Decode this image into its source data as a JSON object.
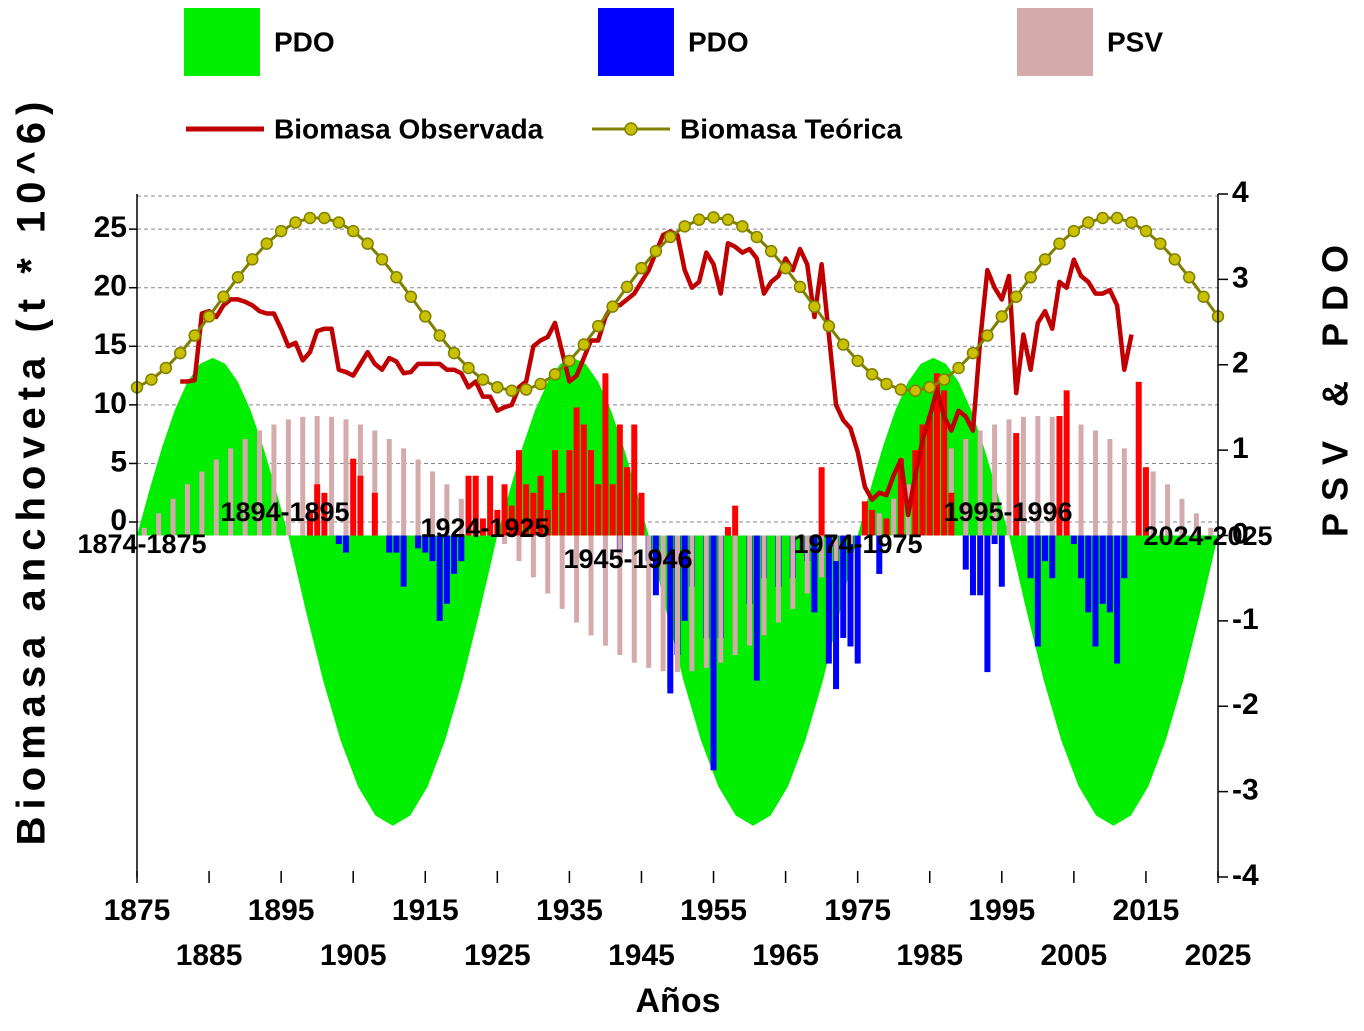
{
  "chart_data": {
    "type": "combo",
    "xlabel": "Años",
    "ylabel": "Biomasa anchoveta (t * 10^6)",
    "y2label": "PSV & PDO",
    "xlim": [
      1875,
      2025
    ],
    "xticks": [
      1875,
      1885,
      1895,
      1905,
      1915,
      1925,
      1935,
      1945,
      1955,
      1965,
      1975,
      1985,
      1995,
      2005,
      2015,
      2025
    ],
    "ylim": [
      -30.3,
      28
    ],
    "yticks": [
      0,
      5,
      10,
      15,
      20,
      25
    ],
    "y2lim": [
      -4,
      4
    ],
    "y2ticks": [
      -4,
      -3,
      -2,
      -1,
      0,
      1,
      2,
      3,
      4
    ],
    "grid": true,
    "annotations": [
      "1874-1875",
      "1894-1895",
      "1924-1925",
      "1945-1946",
      "1974-1975",
      "1995-1996",
      "2024-2025"
    ],
    "series": [
      {
        "name": "PDO",
        "color": "#00ee00",
        "style": "area",
        "axis": "y2",
        "x": [
          1875,
          1876.75,
          1878.5,
          1880.25,
          1882,
          1883.75,
          1885.5,
          1887.25,
          1889,
          1890.75,
          1892.5,
          1894.25,
          1896,
          1898.42,
          1900.83,
          1903.25,
          1905.67,
          1908.08,
          1910.5,
          1912.92,
          1915.33,
          1917.75,
          1920.17,
          1922.58,
          1925,
          1926.75,
          1928.5,
          1930.25,
          1932,
          1933.75,
          1935.5,
          1937.25,
          1939,
          1940.75,
          1942.5,
          1944.25,
          1946,
          1948.42,
          1950.83,
          1953.25,
          1955.67,
          1958.08,
          1960.5,
          1962.92,
          1965.33,
          1967.75,
          1970.17,
          1972.58,
          1975,
          1976.75,
          1978.5,
          1980.25,
          1982,
          1983.75,
          1985.5,
          1987.25,
          1989,
          1990.75,
          1992.5,
          1994.25,
          1996,
          1998.42,
          2000.83,
          2003.25,
          2005.67,
          2008.08,
          2010.5,
          2012.92,
          2015.33,
          2017.75,
          2020.17,
          2022.58,
          2025
        ],
        "values": [
          0,
          0.54,
          1.04,
          1.47,
          1.8,
          2.01,
          2.08,
          2.01,
          1.8,
          1.47,
          1.04,
          0.54,
          0,
          -0.88,
          -1.7,
          -2.4,
          -2.94,
          -3.28,
          -3.4,
          -3.28,
          -2.94,
          -2.4,
          -1.7,
          -0.88,
          0,
          0.54,
          1.04,
          1.47,
          1.8,
          2.01,
          2.08,
          2.01,
          1.8,
          1.47,
          1.04,
          0.54,
          0,
          -0.88,
          -1.7,
          -2.4,
          -2.94,
          -3.28,
          -3.4,
          -3.28,
          -2.94,
          -2.4,
          -1.7,
          -0.88,
          0,
          0.54,
          1.04,
          1.47,
          1.8,
          2.01,
          2.08,
          2.01,
          1.8,
          1.47,
          1.04,
          0.54,
          0,
          -0.88,
          -1.7,
          -2.4,
          -2.94,
          -3.28,
          -3.4,
          -3.28,
          -2.94,
          -2.4,
          -1.7,
          -0.88,
          0
        ]
      },
      {
        "name": "PDO",
        "color": "#0000ff",
        "style": "bar",
        "axis": "y2",
        "x": [
          1903,
          1904,
          1910,
          1911,
          1912,
          1914,
          1915,
          1916,
          1917,
          1918,
          1919,
          1920,
          1942,
          1946,
          1947,
          1949,
          1950,
          1951,
          1952,
          1954,
          1955,
          1956,
          1960,
          1961,
          1962,
          1964,
          1966,
          1968,
          1969,
          1971,
          1972,
          1973,
          1974,
          1975,
          1978,
          1990,
          1991,
          1992,
          1993,
          1994,
          1995,
          1999,
          2000,
          2001,
          2002,
          2005,
          2006,
          2007,
          2008,
          2009,
          2010,
          2011,
          2012
        ],
        "values": [
          -0.1,
          -0.2,
          -0.2,
          -0.2,
          -0.6,
          -0.15,
          -0.2,
          -0.3,
          -1.0,
          -0.8,
          -0.45,
          -0.3,
          -0.2,
          -0.3,
          -0.7,
          -1.85,
          -1.4,
          -1.0,
          -0.6,
          -1.2,
          -2.75,
          -1.2,
          -0.8,
          -1.7,
          -0.5,
          -0.6,
          -0.5,
          -0.3,
          -0.9,
          -1.5,
          -1.8,
          -1.2,
          -1.3,
          -1.5,
          -0.45,
          -0.4,
          -0.7,
          -0.7,
          -1.6,
          -0.1,
          -0.6,
          -0.5,
          -1.3,
          -0.3,
          -0.5,
          -0.1,
          -0.5,
          -0.9,
          -1.3,
          -0.8,
          -0.9,
          -1.5,
          -0.5
        ]
      },
      {
        "name": "PSV",
        "color": "#d4aaaa",
        "style": "bar",
        "axis": "y2",
        "x": [
          1876,
          1878,
          1880,
          1882,
          1884,
          1886,
          1888,
          1890,
          1892,
          1894,
          1896,
          1898,
          1900,
          1902,
          1904,
          1906,
          1908,
          1910,
          1912,
          1914,
          1916,
          1918,
          1920,
          1922,
          1924,
          1926,
          1928,
          1930,
          1932,
          1934,
          1936,
          1938,
          1940,
          1942,
          1944,
          1946,
          1948,
          1950,
          1952,
          1954,
          1956,
          1958,
          1960,
          1962,
          1964,
          1966,
          1968,
          1970,
          1972,
          1974,
          1976,
          1978,
          1980,
          1982,
          1984,
          1986,
          1988,
          1990,
          1992,
          1994,
          1996,
          1998,
          2000,
          2002,
          2004,
          2006,
          2008,
          2010,
          2012,
          2014,
          2016,
          2018,
          2020,
          2022,
          2024
        ],
        "values": [
          0.09,
          0.26,
          0.43,
          0.6,
          0.75,
          0.89,
          1.02,
          1.13,
          1.23,
          1.3,
          1.36,
          1.39,
          1.4,
          1.39,
          1.36,
          1.3,
          1.23,
          1.13,
          1.02,
          0.89,
          0.75,
          0.6,
          0.43,
          0.26,
          0.09,
          -0.1,
          -0.3,
          -0.49,
          -0.68,
          -0.86,
          -1.02,
          -1.17,
          -1.29,
          -1.4,
          -1.49,
          -1.55,
          -1.59,
          -1.6,
          -1.59,
          -1.55,
          -1.49,
          -1.4,
          -1.29,
          -1.17,
          -1.02,
          -0.86,
          -0.68,
          -0.49,
          -0.3,
          -0.1,
          0.09,
          0.26,
          0.43,
          0.6,
          0.75,
          0.89,
          1.02,
          1.13,
          1.23,
          1.3,
          1.36,
          1.39,
          1.4,
          1.39,
          1.36,
          1.3,
          1.23,
          1.13,
          1.02,
          0.89,
          0.75,
          0.6,
          0.43,
          0.26,
          0.09
        ]
      },
      {
        "color": "#ff0000",
        "style": "bar",
        "axis": "y2",
        "x": [
          1899,
          1900,
          1901,
          1905,
          1906,
          1908,
          1921,
          1922,
          1923,
          1924,
          1925,
          1926,
          1927,
          1928,
          1929,
          1930,
          1931,
          1932,
          1933,
          1934,
          1935,
          1936,
          1937,
          1938,
          1939,
          1940,
          1941,
          1942,
          1943,
          1944,
          1945,
          1957,
          1958,
          1970,
          1976,
          1977,
          1979,
          1981,
          1983,
          1984,
          1985,
          1986,
          1987,
          1988,
          1997,
          2003,
          2004,
          2014,
          2015
        ],
        "values": [
          0.3,
          0.6,
          0.5,
          0.9,
          0.7,
          0.5,
          0.7,
          0.7,
          0.2,
          0.7,
          0.3,
          0.6,
          0.35,
          1.0,
          0.6,
          0.5,
          0.7,
          0.3,
          1.0,
          0.5,
          1.0,
          1.5,
          1.3,
          1.0,
          0.6,
          1.9,
          0.6,
          1.3,
          0.8,
          1.3,
          0.5,
          0.1,
          0.35,
          0.8,
          0.4,
          0.3,
          0.2,
          0.9,
          1.0,
          1.3,
          1.4,
          1.9,
          1.7,
          0.5,
          1.2,
          1.4,
          1.7,
          1.8,
          0.8
        ]
      },
      {
        "name": "Biomasa Observada",
        "color": "#c00000",
        "style": "line",
        "x": [
          1881,
          1882,
          1883,
          1884,
          1885,
          1886,
          1887,
          1888,
          1889,
          1890,
          1891,
          1892,
          1893,
          1894,
          1895,
          1896,
          1897,
          1898,
          1899,
          1900,
          1901,
          1902,
          1903,
          1904,
          1905,
          1906,
          1907,
          1908,
          1909,
          1910,
          1911,
          1912,
          1913,
          1914,
          1915,
          1916,
          1917,
          1918,
          1919,
          1920,
          1921,
          1922,
          1923,
          1924,
          1925,
          1926,
          1927,
          1928,
          1929,
          1930,
          1931,
          1932,
          1933,
          1934,
          1935,
          1936,
          1937,
          1938,
          1939,
          1940,
          1941,
          1942,
          1943,
          1944,
          1945,
          1946,
          1947,
          1948,
          1949,
          1950,
          1951,
          1952,
          1953,
          1954,
          1955,
          1956,
          1957,
          1958,
          1959,
          1960,
          1961,
          1962,
          1963,
          1964,
          1965,
          1966,
          1967,
          1968,
          1969,
          1970,
          1971,
          1972,
          1973,
          1974,
          1975,
          1976,
          1977,
          1978,
          1979,
          1980,
          1981,
          1982,
          1983,
          1984,
          1985,
          1986,
          1987,
          1988,
          1989,
          1990,
          1991,
          1992,
          1993,
          1994,
          1995,
          1996,
          1997,
          1998,
          1999,
          2000,
          2001,
          2002,
          2003,
          2004,
          2005,
          2006,
          2007,
          2008,
          2009,
          2010,
          2011,
          2012,
          2013
        ],
        "values": [
          12.0,
          12.0,
          12.1,
          17.8,
          18.0,
          17.5,
          18.5,
          19.0,
          19.0,
          18.8,
          18.5,
          18.0,
          17.8,
          17.8,
          16.5,
          15.0,
          15.3,
          13.8,
          14.5,
          16.3,
          16.5,
          16.5,
          13.0,
          12.8,
          12.5,
          13.5,
          14.5,
          13.5,
          13.0,
          14.0,
          13.7,
          12.7,
          12.8,
          13.5,
          13.5,
          13.5,
          13.5,
          13.0,
          13.0,
          12.7,
          11.5,
          12.0,
          10.7,
          10.7,
          9.5,
          9.8,
          10.0,
          11.5,
          12.0,
          15.0,
          15.5,
          15.8,
          17.0,
          14.5,
          12.0,
          12.5,
          14.0,
          15.5,
          15.5,
          17.5,
          18.5,
          18.5,
          19.0,
          19.5,
          20.5,
          21.5,
          23.0,
          24.5,
          24.8,
          24.5,
          21.5,
          20.0,
          20.5,
          23.0,
          22.0,
          19.5,
          23.8,
          23.5,
          23.0,
          23.3,
          22.5,
          19.5,
          20.5,
          21.0,
          22.5,
          21.5,
          23.3,
          22.0,
          17.5,
          22.0,
          16.0,
          10.0,
          8.7,
          8.0,
          6.0,
          3.0,
          1.9,
          2.5,
          2.3,
          4.0,
          5.3,
          0.6,
          4.0,
          7.0,
          9.0,
          11.3,
          9.0,
          7.8,
          9.5,
          9.0,
          7.8,
          15.5,
          21.5,
          20.0,
          19.0,
          21.0,
          11.0,
          16.0,
          13.0,
          17.0,
          18.0,
          16.5,
          20.5,
          20.0,
          22.4,
          21.0,
          20.5,
          19.5,
          19.5,
          19.8,
          18.5,
          13.0,
          16.0
        ]
      },
      {
        "name": "Biomasa Teórica",
        "color": "#808000",
        "marker_color": "#c8c000",
        "style": "line-marker",
        "x": [
          1875,
          1877,
          1879,
          1881,
          1883,
          1885,
          1887,
          1889,
          1891,
          1893,
          1895,
          1897,
          1899,
          1901,
          1903,
          1905,
          1907,
          1909,
          1911,
          1913,
          1915,
          1917,
          1919,
          1921,
          1923,
          1925,
          1927,
          1929,
          1931,
          1933,
          1935,
          1937,
          1939,
          1941,
          1943,
          1945,
          1947,
          1949,
          1951,
          1953,
          1955,
          1957,
          1959,
          1961,
          1963,
          1965,
          1967,
          1969,
          1971,
          1973,
          1975,
          1977,
          1979,
          1981,
          1983,
          1985,
          1987,
          1989,
          1991,
          1993,
          1995,
          1997,
          1999,
          2001,
          2003,
          2005,
          2007,
          2009,
          2011,
          2013,
          2015,
          2017,
          2019,
          2021,
          2023,
          2025
        ],
        "values": [
          11.5,
          12.16,
          13.15,
          14.42,
          15.92,
          17.55,
          19.23,
          20.89,
          22.42,
          23.76,
          24.83,
          25.57,
          25.95,
          25.95,
          25.57,
          24.83,
          23.76,
          22.42,
          20.89,
          19.23,
          17.55,
          15.92,
          14.42,
          13.15,
          12.16,
          11.5,
          11.21,
          11.31,
          11.78,
          12.61,
          13.76,
          15.15,
          16.72,
          18.39,
          20.07,
          21.67,
          23.12,
          24.33,
          25.24,
          25.81,
          26.0,
          25.81,
          25.24,
          24.33,
          23.12,
          21.67,
          20.07,
          18.39,
          16.72,
          15.15,
          13.76,
          12.61,
          11.78,
          11.31,
          11.21,
          11.5,
          12.16,
          13.15,
          14.42,
          15.92,
          17.55,
          19.23,
          20.89,
          22.42,
          23.76,
          24.83,
          25.57,
          25.95,
          25.95,
          25.57,
          24.83,
          23.76,
          22.42,
          20.89,
          19.23,
          17.55
        ]
      }
    ]
  }
}
